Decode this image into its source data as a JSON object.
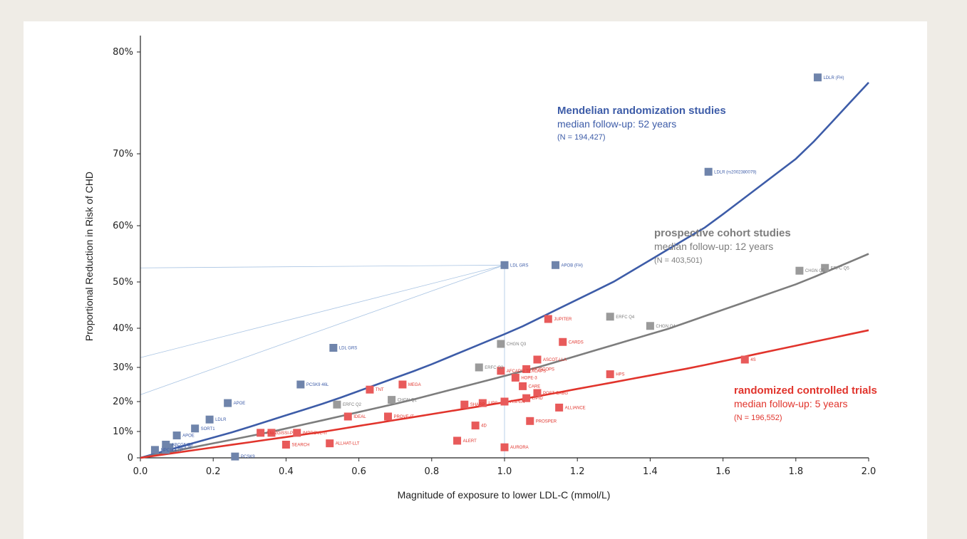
{
  "chart_data": {
    "type": "scatter",
    "x_label": "Magnitude of exposure to lower LDL-C (mmol/L)",
    "y_label": "Proportional Reduction in Risk of CHD",
    "xlim": [
      0,
      2.0
    ],
    "x_ticks": [
      "0.0",
      "0.2",
      "0.4",
      "0.6",
      "0.8",
      "1.0",
      "1.2",
      "1.4",
      "1.6",
      "1.8",
      "2.0"
    ],
    "y_ticks": [
      {
        "label": "0",
        "value": 0
      },
      {
        "label": "10%",
        "value": 10
      },
      {
        "label": "20%",
        "value": 20
      },
      {
        "label": "30%",
        "value": 30
      },
      {
        "label": "40%",
        "value": 40
      },
      {
        "label": "50%",
        "value": 50
      },
      {
        "label": "60%",
        "value": 60
      },
      {
        "label": "70%",
        "value": 70
      },
      {
        "label": "80%",
        "value": 80
      }
    ],
    "guides": [
      {
        "x": 1.0,
        "y": 52.5
      },
      {
        "x": 0.53,
        "y": 32.5
      },
      {
        "x": 0.0,
        "y": 22
      }
    ],
    "series": [
      {
        "key": "mr",
        "title": "Mendelian randomization studies",
        "subtitle": "median follow-up: 52 years",
        "n_label": "(N = 194,427)",
        "color": "#3d5ca8",
        "marker_color": "#6f84ab",
        "line": [
          [
            0,
            0
          ],
          [
            2.0,
            77
          ]
        ],
        "points": [
          {
            "x": 0.04,
            "y": 3,
            "label": "NPC1L1"
          },
          {
            "x": 0.07,
            "y": 5,
            "label": "ABCG5/G8"
          },
          {
            "x": 0.08,
            "y": 4,
            "label": "HMGCR"
          },
          {
            "x": 0.07,
            "y": 3,
            "label": "CETP"
          },
          {
            "x": 0.1,
            "y": 8.5,
            "label": "APOE"
          },
          {
            "x": 0.15,
            "y": 11,
            "label": "SORT1"
          },
          {
            "x": 0.19,
            "y": 14,
            "label": "LDLR"
          },
          {
            "x": 0.24,
            "y": 19.5,
            "label": "APOE"
          },
          {
            "x": 0.44,
            "y": 25,
            "label": "PCSK9 46L"
          },
          {
            "x": 0.53,
            "y": 35,
            "label": "LDL GRS"
          },
          {
            "x": 0.26,
            "y": 0.5,
            "label": "PCSK9"
          },
          {
            "x": 1.0,
            "y": 53,
            "label": "LDL GRS"
          },
          {
            "x": 1.14,
            "y": 53,
            "label": "APOB (FH)"
          },
          {
            "x": 1.56,
            "y": 67.5,
            "label": "LDLR (rs2002380079)"
          },
          {
            "x": 1.86,
            "y": 77.5,
            "label": "LDLR (FH)"
          }
        ]
      },
      {
        "key": "pc",
        "title": "prospective cohort studies",
        "subtitle": "median follow-up: 12 years",
        "n_label": "(N = 403,501)",
        "color": "#7d7d7d",
        "marker_color": "#9a9a9a",
        "line": [
          [
            0,
            0
          ],
          [
            2.0,
            55
          ]
        ],
        "points": [
          {
            "x": 0.54,
            "y": 19,
            "label": "ERFC Q2"
          },
          {
            "x": 0.69,
            "y": 20.5,
            "label": "CHGN Q2"
          },
          {
            "x": 0.93,
            "y": 30,
            "label": "ERFC Q3"
          },
          {
            "x": 0.99,
            "y": 36,
            "label": "CHGN Q3"
          },
          {
            "x": 1.29,
            "y": 42.5,
            "label": "ERFC Q4"
          },
          {
            "x": 1.4,
            "y": 40.5,
            "label": "CHGN Q4"
          },
          {
            "x": 1.81,
            "y": 52,
            "label": "CHGN Q5"
          },
          {
            "x": 1.88,
            "y": 52.5,
            "label": "ERFC Q5"
          }
        ]
      },
      {
        "key": "rct",
        "title": "randomized controlled trials",
        "subtitle": "median follow-up: 5 years",
        "n_label": "(N = 196,552)",
        "color": "#e1342c",
        "marker_color": "#e85a5a",
        "line": [
          [
            0,
            0
          ],
          [
            2.0,
            39.5
          ]
        ],
        "points": [
          {
            "x": 0.33,
            "y": 9.5,
            "label": "A to Z"
          },
          {
            "x": 0.36,
            "y": 9.5,
            "label": "GISSI-P"
          },
          {
            "x": 0.4,
            "y": 5,
            "label": "SEARCH"
          },
          {
            "x": 0.43,
            "y": 9.5,
            "label": "IMPROVE-IT"
          },
          {
            "x": 0.52,
            "y": 5.5,
            "label": "ALLHAT-LLT"
          },
          {
            "x": 0.57,
            "y": 15,
            "label": "IDEAL"
          },
          {
            "x": 0.63,
            "y": 23.5,
            "label": "TNT"
          },
          {
            "x": 0.68,
            "y": 15,
            "label": "PROVE-IT"
          },
          {
            "x": 0.72,
            "y": 25,
            "label": "MEGA"
          },
          {
            "x": 0.87,
            "y": 6.5,
            "label": "ALERT"
          },
          {
            "x": 0.89,
            "y": 19,
            "label": "SHARP"
          },
          {
            "x": 0.92,
            "y": 12,
            "label": "4D"
          },
          {
            "x": 0.94,
            "y": 19.5,
            "label": "LIPS"
          },
          {
            "x": 0.99,
            "y": 29,
            "label": "AFCAPS/ TEXCAPS"
          },
          {
            "x": 1.0,
            "y": 20,
            "label": "ASPEN"
          },
          {
            "x": 1.0,
            "y": 4,
            "label": "AURORA"
          },
          {
            "x": 1.03,
            "y": 27,
            "label": "HOPE-3"
          },
          {
            "x": 1.05,
            "y": 24.5,
            "label": "CARE"
          },
          {
            "x": 1.06,
            "y": 21,
            "label": "LIPID"
          },
          {
            "x": 1.06,
            "y": 29.5,
            "label": "WOSCOPS"
          },
          {
            "x": 1.07,
            "y": 13.5,
            "label": "PROSPER"
          },
          {
            "x": 1.09,
            "y": 22.5,
            "label": "POST-CABG"
          },
          {
            "x": 1.09,
            "y": 32,
            "label": "ASCOT-LLA"
          },
          {
            "x": 1.12,
            "y": 42,
            "label": "JUPITER"
          },
          {
            "x": 1.15,
            "y": 18,
            "label": "ALLIANCE"
          },
          {
            "x": 1.16,
            "y": 36.5,
            "label": "CARDS"
          },
          {
            "x": 1.29,
            "y": 28,
            "label": "HPS"
          },
          {
            "x": 1.66,
            "y": 32,
            "label": "4S"
          }
        ]
      }
    ]
  }
}
